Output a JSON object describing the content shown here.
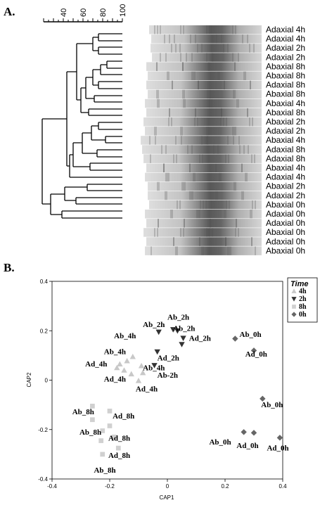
{
  "panel_a": {
    "label": "A.",
    "scale_ticks": [
      "40",
      "60",
      "80",
      "100"
    ],
    "lanes": [
      "Adaxial 4h",
      "Adaxial 4h",
      "Adaxial 2h",
      "Adaxial 2h",
      "Abaxial 8h",
      "Abaxial 8h",
      "Adaxial 8h",
      "Abaxial 8h",
      "Abaxial 4h",
      "Abaxial 8h",
      "Abaxial 2h",
      "Adaxial 2h",
      "Abaxial 4h",
      "Adaxial 8h",
      "Adaxial 8h",
      "Abaxial 4h",
      "Adaxial 4h",
      "Abaxial 2h",
      "Adaxial 2h",
      "Abaxial 0h",
      "Adaxial 0h",
      "Adaxial 0h",
      "Abaxial 0h",
      "Adaxial 0h",
      "Abaxial 0h"
    ]
  },
  "panel_b": {
    "label": "B.",
    "chart_data": {
      "type": "scatter",
      "xlabel": "CAP1",
      "ylabel": "CAP2",
      "xlim": [
        -0.4,
        0.4
      ],
      "ylim": [
        -0.4,
        0.4
      ],
      "xticks": [
        "-0.4",
        "-0.2",
        "0",
        "0.2",
        "0.4"
      ],
      "yticks": [
        "0.4",
        "0.2",
        "0",
        "-0.2",
        "-0.4"
      ],
      "legend": {
        "title": "Time",
        "placement": "top-right",
        "entries": [
          {
            "label": "4h",
            "marker": "triangle-up",
            "color": "#c8c8c8"
          },
          {
            "label": "2h",
            "marker": "triangle-down",
            "color": "#333333"
          },
          {
            "label": "8h",
            "marker": "square",
            "color": "#d0d0d0"
          },
          {
            "label": "0h",
            "marker": "diamond",
            "color": "#666666"
          }
        ]
      },
      "series": [
        {
          "marker": "triangle-up",
          "color": "#c8c8c8",
          "points": [
            {
              "x": -0.12,
              "y": 0.095
            },
            {
              "x": -0.14,
              "y": 0.078
            },
            {
              "x": -0.165,
              "y": 0.065
            },
            {
              "x": -0.175,
              "y": 0.05
            },
            {
              "x": -0.15,
              "y": 0.04
            },
            {
              "x": -0.09,
              "y": 0.058
            },
            {
              "x": -0.125,
              "y": 0.025
            },
            {
              "x": -0.1,
              "y": -0.002
            },
            {
              "x": -0.085,
              "y": 0.03
            }
          ]
        },
        {
          "marker": "triangle-down",
          "color": "#333333",
          "points": [
            {
              "x": -0.03,
              "y": 0.195
            },
            {
              "x": 0.02,
              "y": 0.205
            },
            {
              "x": 0.035,
              "y": 0.2
            },
            {
              "x": 0.055,
              "y": 0.17
            },
            {
              "x": 0.05,
              "y": 0.145
            },
            {
              "x": -0.035,
              "y": 0.115
            },
            {
              "x": -0.045,
              "y": 0.06
            }
          ]
        },
        {
          "marker": "square",
          "color": "#d0d0d0",
          "points": [
            {
              "x": -0.26,
              "y": -0.105
            },
            {
              "x": -0.2,
              "y": -0.125
            },
            {
              "x": -0.26,
              "y": -0.16
            },
            {
              "x": -0.2,
              "y": -0.185
            },
            {
              "x": -0.225,
              "y": -0.205
            },
            {
              "x": -0.185,
              "y": -0.23
            },
            {
              "x": -0.23,
              "y": -0.245
            },
            {
              "x": -0.17,
              "y": -0.275
            },
            {
              "x": -0.225,
              "y": -0.3
            }
          ]
        },
        {
          "marker": "diamond",
          "color": "#666666",
          "points": [
            {
              "x": 0.235,
              "y": 0.168
            },
            {
              "x": 0.3,
              "y": 0.12
            },
            {
              "x": 0.33,
              "y": -0.075
            },
            {
              "x": 0.265,
              "y": -0.21
            },
            {
              "x": 0.3,
              "y": -0.213
            },
            {
              "x": 0.39,
              "y": -0.233
            }
          ]
        }
      ],
      "annotations": [
        {
          "text": "Ab_2h",
          "x": -0.085,
          "y": 0.215
        },
        {
          "text": "Ab_2h",
          "x": 0.0,
          "y": 0.245
        },
        {
          "text": "Ab_2h",
          "x": 0.02,
          "y": 0.2
        },
        {
          "text": "Ad_2h",
          "x": 0.075,
          "y": 0.16
        },
        {
          "text": "Ab_0h",
          "x": 0.25,
          "y": 0.175
        },
        {
          "text": "Ad_0h",
          "x": 0.27,
          "y": 0.095
        },
        {
          "text": "Ab_4h",
          "x": -0.185,
          "y": 0.17
        },
        {
          "text": "Ab_4h",
          "x": -0.22,
          "y": 0.105
        },
        {
          "text": "Ad_2h",
          "x": -0.035,
          "y": 0.08
        },
        {
          "text": "Ad_4h",
          "x": -0.285,
          "y": 0.055
        },
        {
          "text": "Ab_4h",
          "x": -0.085,
          "y": 0.04
        },
        {
          "text": "Ab-2h",
          "x": -0.035,
          "y": 0.01
        },
        {
          "text": "Ad_4h",
          "x": -0.22,
          "y": -0.005
        },
        {
          "text": "Ad_4h",
          "x": -0.11,
          "y": -0.045
        },
        {
          "text": "Ab_0h",
          "x": 0.325,
          "y": -0.11
        },
        {
          "text": "Ab_8h",
          "x": -0.33,
          "y": -0.138
        },
        {
          "text": "Ad_8h",
          "x": -0.19,
          "y": -0.155
        },
        {
          "text": "Ab_8h",
          "x": -0.305,
          "y": -0.22
        },
        {
          "text": "Ad_8h",
          "x": -0.205,
          "y": -0.245
        },
        {
          "text": "Ab_0h",
          "x": 0.145,
          "y": -0.26
        },
        {
          "text": "Ad_0h",
          "x": 0.24,
          "y": -0.275
        },
        {
          "text": "Ad_0h",
          "x": 0.345,
          "y": -0.285
        },
        {
          "text": "Ad_8h",
          "x": -0.205,
          "y": -0.315
        },
        {
          "text": "Ab_8h",
          "x": -0.255,
          "y": -0.375
        }
      ]
    }
  }
}
